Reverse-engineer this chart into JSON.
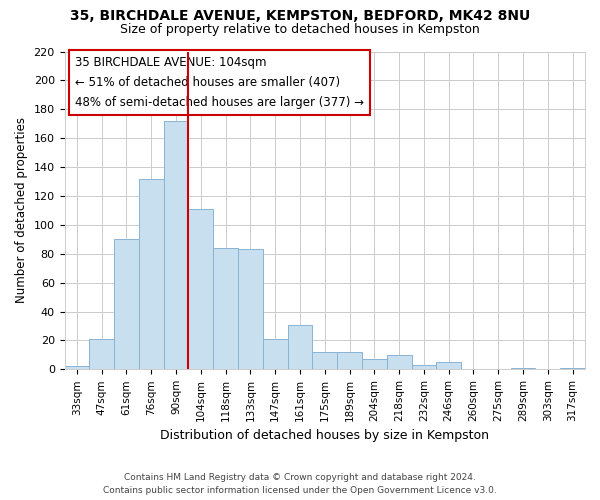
{
  "title": "35, BIRCHDALE AVENUE, KEMPSTON, BEDFORD, MK42 8NU",
  "subtitle": "Size of property relative to detached houses in Kempston",
  "xlabel": "Distribution of detached houses by size in Kempston",
  "ylabel": "Number of detached properties",
  "bar_labels": [
    "33sqm",
    "47sqm",
    "61sqm",
    "76sqm",
    "90sqm",
    "104sqm",
    "118sqm",
    "133sqm",
    "147sqm",
    "161sqm",
    "175sqm",
    "189sqm",
    "204sqm",
    "218sqm",
    "232sqm",
    "246sqm",
    "260sqm",
    "275sqm",
    "289sqm",
    "303sqm",
    "317sqm"
  ],
  "bar_heights": [
    2,
    21,
    90,
    132,
    172,
    111,
    84,
    83,
    21,
    31,
    12,
    12,
    7,
    10,
    3,
    5,
    0,
    0,
    1,
    0,
    1
  ],
  "bar_color": "#c8dff0",
  "bar_edge_color": "#8ab4d4",
  "vline_color": "#cc0000",
  "annotation_title": "35 BIRCHDALE AVENUE: 104sqm",
  "annotation_line1": "← 51% of detached houses are smaller (407)",
  "annotation_line2": "48% of semi-detached houses are larger (377) →",
  "annotation_box_color": "#ffffff",
  "annotation_box_edge_color": "#cc0000",
  "ylim": [
    0,
    220
  ],
  "yticks": [
    0,
    20,
    40,
    60,
    80,
    100,
    120,
    140,
    160,
    180,
    200,
    220
  ],
  "footer1": "Contains HM Land Registry data © Crown copyright and database right 2024.",
  "footer2": "Contains public sector information licensed under the Open Government Licence v3.0.",
  "bg_color": "#ffffff",
  "grid_color": "#cccccc",
  "vline_bar_index": 5
}
